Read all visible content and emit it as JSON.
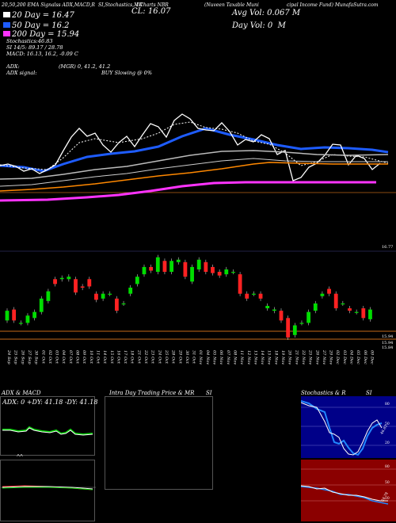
{
  "header": {
    "line1_left": "20,50,200 EMA Signalss ADX,MACD,R",
    "line1_mid": "SI,Stochastics,MR",
    "line1_mid2": "I Charts NBR",
    "line1_right": "(Nuveen Taxable Muni",
    "line1_right2": "cipal Income Fund) MunafaSutra.com",
    "cl": "CL: 16.07",
    "avg_vol": "Avg Vol: 0.067 M",
    "day_vol": "Day Vol: 0",
    "day_vol_unit": "M",
    "ema20": "20 Day = 16.47",
    "ema50": "50 Day = 16.2",
    "ema200": "200 Day = 15.94",
    "stochastics": "Stochastics:46.83",
    "si": "SI 14/5: 89.17 / 28.78",
    "macd": "MACD: 16.13, 16.2, -0.09 C",
    "adx": "ADX:",
    "adx_vals": "(MGR) 0, 41.2, 41.2",
    "adx_signal": "ADX signal:",
    "buy_slowing": "BUY Slowing @ 0%"
  },
  "price_labels": {
    "top_right": "16.77",
    "r1": "15.94",
    "r2": "15.94",
    "r3": "15.84"
  },
  "dates": [
    "24 Sep",
    "25 Sep",
    "26 Sep",
    "27 Sep",
    "30 Sep",
    "01 Oct",
    "02 Oct",
    "03 Oct",
    "04 Oct",
    "07 Oct",
    "08 Oct",
    "09 Oct",
    "10 Oct",
    "11 Oct",
    "14 Oct",
    "15 Oct",
    "16 Oct",
    "17 Oct",
    "18 Oct",
    "21 Oct",
    "22 Oct",
    "23 Oct",
    "24 Oct",
    "25 Oct",
    "28 Oct",
    "29 Oct",
    "30 Oct",
    "31 Oct",
    "01 Nov",
    "04 Nov",
    "05 Nov",
    "06 Nov",
    "07 Nov",
    "08 Nov",
    "11 Nov",
    "12 Nov",
    "13 Nov",
    "14 Nov",
    "15 Nov",
    "18 Nov",
    "19 Nov",
    "20 Nov",
    "21 Nov",
    "22 Nov",
    "25 Nov",
    "26 Nov",
    "27 Nov",
    "29 Nov",
    "02 Dec",
    "03 Dec",
    "04 Dec",
    "05 Dec",
    "06 Dec",
    "09 Dec"
  ],
  "panels": {
    "adx_title": "ADX  & MACD",
    "adx_values": "ADX: 0  +DY: 41.18  -DY: 41.18",
    "intraday_title": "Intra Day Trading Price  & MR",
    "si_title": "SI",
    "stoch_title": "Stochastics & R",
    "stoch_si": "SI",
    "stoch_levels": [
      "80",
      "50",
      "20"
    ],
    "stoch_value": "46.83",
    "rsi_levels": [
      "80",
      "50",
      "20"
    ],
    "rsi_value": "28.78"
  },
  "colors": {
    "bull": "#00dd00",
    "bear": "#ff2222",
    "ema20": "#ffffff",
    "ema50": "#1e5cff",
    "ema200": "#ff8800",
    "magenta": "#ff33ff",
    "support": "#c46a1a",
    "stoch_bg": "#000088",
    "rsi_bg": "#8b0000"
  },
  "candles": [
    {
      "o": 15.98,
      "c": 16.06
    },
    {
      "o": 16.07,
      "c": 15.98
    },
    {
      "o": 15.96,
      "c": 15.96
    },
    {
      "o": 15.96,
      "c": 16.02
    },
    {
      "o": 16.0,
      "c": 16.05
    },
    {
      "o": 16.05,
      "c": 16.16
    },
    {
      "o": 16.14,
      "c": 16.22
    },
    {
      "o": 16.32,
      "c": 16.28
    },
    {
      "o": 16.32,
      "c": 16.33
    },
    {
      "o": 16.32,
      "c": 16.34
    },
    {
      "o": 16.32,
      "c": 16.21
    },
    {
      "o": 16.26,
      "c": 16.25
    },
    {
      "o": 16.32,
      "c": 16.26
    },
    {
      "o": 16.2,
      "c": 16.15
    },
    {
      "o": 16.16,
      "c": 16.2
    },
    {
      "o": 16.2,
      "c": 16.2
    },
    {
      "o": 16.16,
      "c": 16.06
    },
    {
      "o": 16.12,
      "c": 16.12
    },
    {
      "o": 16.2,
      "c": 16.25
    },
    {
      "o": 16.28,
      "c": 16.34
    },
    {
      "o": 16.36,
      "c": 16.42
    },
    {
      "o": 16.42,
      "c": 16.39
    },
    {
      "o": 16.38,
      "c": 16.5
    },
    {
      "o": 16.47,
      "c": 16.38
    },
    {
      "o": 16.38,
      "c": 16.47
    },
    {
      "o": 16.46,
      "c": 16.48
    },
    {
      "o": 16.46,
      "c": 16.34
    },
    {
      "o": 16.3,
      "c": 16.42
    },
    {
      "o": 16.4,
      "c": 16.48
    },
    {
      "o": 16.46,
      "c": 16.38
    },
    {
      "o": 16.42,
      "c": 16.37
    },
    {
      "o": 16.38,
      "c": 16.35
    },
    {
      "o": 16.36,
      "c": 16.4
    },
    {
      "o": 16.38,
      "c": 16.38
    },
    {
      "o": 16.36,
      "c": 16.2
    },
    {
      "o": 16.2,
      "c": 16.16
    },
    {
      "o": 16.2,
      "c": 16.2
    },
    {
      "o": 16.2,
      "c": 16.16
    },
    {
      "o": 16.08,
      "c": 16.1
    },
    {
      "o": 16.06,
      "c": 16.07
    },
    {
      "o": 16.06,
      "c": 15.98
    },
    {
      "o": 16.0,
      "c": 15.84
    },
    {
      "o": 15.86,
      "c": 15.94
    },
    {
      "o": 15.96,
      "c": 15.96
    },
    {
      "o": 15.96,
      "c": 16.05
    },
    {
      "o": 16.06,
      "c": 16.12
    },
    {
      "o": 16.18,
      "c": 16.2
    },
    {
      "o": 16.24,
      "c": 16.2
    },
    {
      "o": 16.2,
      "c": 16.08
    },
    {
      "o": 16.12,
      "c": 16.12
    },
    {
      "o": 16.08,
      "c": 16.06
    },
    {
      "o": 16.05,
      "c": 16.05
    },
    {
      "o": 16.08,
      "c": 16.0
    },
    {
      "o": 15.99,
      "c": 16.07
    }
  ]
}
